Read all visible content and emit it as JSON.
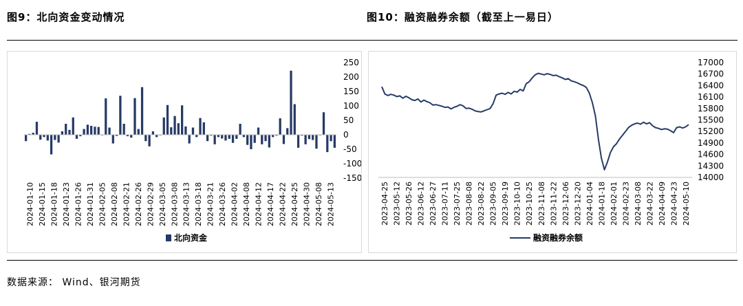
{
  "header": {
    "fig1_title": "图9：北向资金变动情况",
    "fig2_title": "图10：融资融券余额（截至上一易日）"
  },
  "footer": {
    "source": "数据来源： Wind、银河期货"
  },
  "colors": {
    "series": "#263a66",
    "axis": "#bfbfbf",
    "rule": "#000000"
  },
  "chart_data": [
    {
      "type": "bar",
      "title": "",
      "xlabel": "",
      "ylabel": "",
      "ylim": [
        -150,
        250
      ],
      "yticks": [
        -150,
        -100,
        -50,
        0,
        50,
        100,
        150,
        200,
        250
      ],
      "grid": false,
      "legend": "bottom-center",
      "x_tick_labels": [
        "2024-01-10",
        "2024-01-15",
        "2024-01-18",
        "2024-01-23",
        "2024-01-26",
        "2024-01-31",
        "2024-02-05",
        "2024-02-08",
        "2024-02-21",
        "2024-02-26",
        "2024-02-29",
        "2024-03-05",
        "2024-03-08",
        "2024-03-13",
        "2024-03-18",
        "2024-03-21",
        "2024-03-26",
        "2024-04-02",
        "2024-04-08",
        "2024-04-12",
        "2024-04-17",
        "2024-04-22",
        "2024-04-25",
        "2024-04-30",
        "2024-05-08",
        "2024-05-13"
      ],
      "series": [
        {
          "name": "北向资金",
          "values": [
            -22,
            3,
            7,
            45,
            -17,
            -8,
            -20,
            -68,
            -18,
            -27,
            12,
            38,
            17,
            60,
            -14,
            -5,
            20,
            35,
            31,
            28,
            27,
            -2,
            126,
            25,
            -30,
            -4,
            135,
            38,
            -5,
            -10,
            127,
            20,
            165,
            -22,
            -40,
            12,
            -8,
            -2,
            60,
            103,
            26,
            65,
            40,
            102,
            29,
            -30,
            25,
            -8,
            58,
            43,
            -22,
            -3,
            -33,
            -8,
            -13,
            -20,
            -14,
            -28,
            -14,
            38,
            -8,
            -35,
            -50,
            -28,
            25,
            -33,
            -22,
            -44,
            -8,
            -3,
            57,
            -32,
            23,
            222,
            106,
            -45,
            -3,
            -33,
            -15,
            -18,
            -48,
            -2,
            78,
            -60,
            -22,
            -45
          ]
        }
      ]
    },
    {
      "type": "line",
      "title": "",
      "xlabel": "",
      "ylabel": "",
      "ylim": [
        14000,
        17000
      ],
      "yticks": [
        14000,
        14300,
        14600,
        14900,
        15200,
        15500,
        15800,
        16100,
        16400,
        16700,
        17000
      ],
      "y_axis_side": "right",
      "grid": false,
      "legend": "bottom-center",
      "x_tick_labels": [
        "2023-04-25",
        "2023-05-12",
        "2023-05-26",
        "2023-06-12",
        "2023-06-27",
        "2023-07-11",
        "2023-07-25",
        "2023-08-08",
        "2023-08-22",
        "2023-09-05",
        "2023-09-19",
        "2023-10-10",
        "2023-10-25",
        "2023-11-08",
        "2023-11-22",
        "2023-12-06",
        "2023-12-20",
        "2024-01-04",
        "2024-01-18",
        "2024-02-01",
        "2024-02-23",
        "2024-03-08",
        "2024-03-22",
        "2024-04-09",
        "2024-04-23",
        "2024-05-10"
      ],
      "series": [
        {
          "name": "融资融券余额",
          "values": [
            16370,
            16180,
            16140,
            16170,
            16150,
            16110,
            16130,
            16070,
            16120,
            16080,
            16030,
            16010,
            16050,
            15970,
            16020,
            15980,
            15950,
            15890,
            15900,
            15880,
            15860,
            15830,
            15840,
            15790,
            15830,
            15860,
            15900,
            15870,
            15800,
            15810,
            15780,
            15740,
            15720,
            15710,
            15740,
            15770,
            15800,
            15930,
            16150,
            16180,
            16200,
            16170,
            16220,
            16180,
            16250,
            16230,
            16300,
            16260,
            16450,
            16500,
            16600,
            16680,
            16720,
            16700,
            16680,
            16710,
            16690,
            16660,
            16670,
            16630,
            16600,
            16560,
            16580,
            16520,
            16500,
            16470,
            16430,
            16400,
            16350,
            16200,
            15950,
            15600,
            15000,
            14500,
            14200,
            14400,
            14650,
            14800,
            14880,
            15000,
            15100,
            15200,
            15300,
            15360,
            15400,
            15420,
            15390,
            15440,
            15400,
            15430,
            15350,
            15300,
            15280,
            15250,
            15270,
            15260,
            15220,
            15170,
            15300,
            15320,
            15290,
            15320,
            15380
          ]
        }
      ]
    }
  ]
}
